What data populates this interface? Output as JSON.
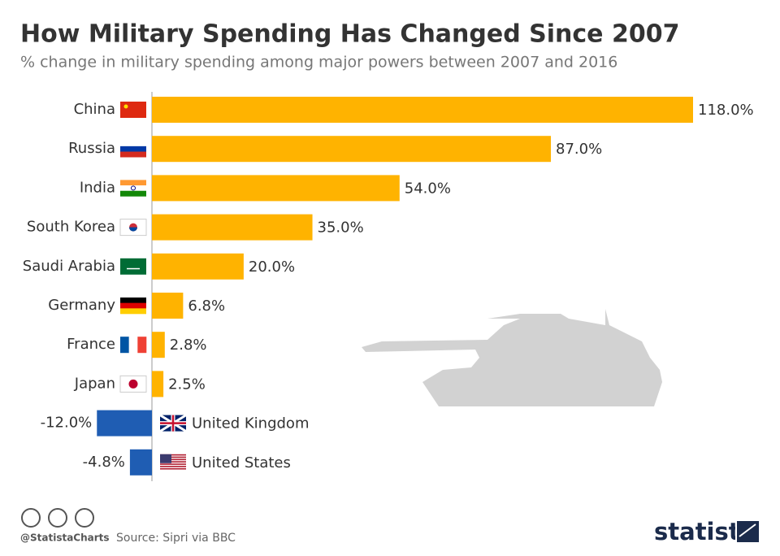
{
  "chart_data": {
    "type": "bar",
    "orientation": "horizontal",
    "title": "How Military Spending Has Changed Since 2007",
    "subtitle": "% change in military spending among major powers between 2007 and 2016",
    "categories": [
      "China",
      "Russia",
      "India",
      "South Korea",
      "Saudi Arabia",
      "Germany",
      "France",
      "Japan",
      "United Kingdom",
      "United States"
    ],
    "values": [
      118.0,
      87.0,
      54.0,
      35.0,
      20.0,
      6.8,
      2.8,
      2.5,
      -12.0,
      -4.8
    ],
    "value_labels": [
      "118.0%",
      "87.0%",
      "54.0%",
      "35.0%",
      "20.0%",
      "6.8%",
      "2.8%",
      "2.5%",
      "-12.0%",
      "-4.8%"
    ],
    "color": "#ffb300",
    "negative_color": "#1f5db3",
    "credit": "@StatistaCharts",
    "source": "Source: Sipri via BBC",
    "brand": "statista"
  }
}
